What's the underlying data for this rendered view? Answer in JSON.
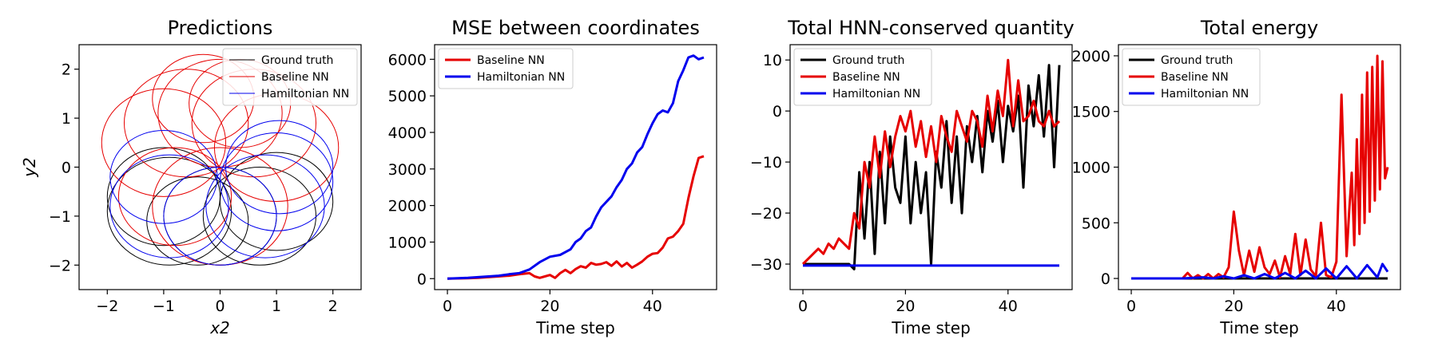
{
  "chart_data": [
    {
      "type": "line",
      "title": "Predictions",
      "xlabel": "x2",
      "ylabel": "y2",
      "xlim": [
        -2.5,
        2.5
      ],
      "ylim": [
        -2.5,
        2.5
      ],
      "xticks": [
        -2,
        -1,
        0,
        1,
        2
      ],
      "yticks": [
        -2,
        -1,
        0,
        1,
        2
      ],
      "xticklabels": [
        "−2",
        "−1",
        "0",
        "1",
        "2"
      ],
      "yticklabels": [
        "−2",
        "−1",
        "0",
        "1",
        "2"
      ],
      "legend": "top-right",
      "series": [
        {
          "name": "Ground truth",
          "color": "#000000",
          "width": 1,
          "loops": [
            {
              "cx": -0.9,
              "cy": -0.9,
              "r": 1.1
            },
            {
              "cx": 0.7,
              "cy": -1.0,
              "r": 1.0
            },
            {
              "cx": -0.4,
              "cy": -1.1,
              "r": 0.9
            },
            {
              "cx": 1.0,
              "cy": -0.7,
              "r": 1.0
            },
            {
              "cx": 0.0,
              "cy": -1.0,
              "r": 1.0
            },
            {
              "cx": -1.0,
              "cy": -0.6,
              "r": 1.0
            }
          ]
        },
        {
          "name": "Baseline NN",
          "color": "#e60000",
          "width": 1,
          "loops": [
            {
              "cx": -0.6,
              "cy": 0.9,
              "r": 1.1
            },
            {
              "cx": 0.6,
              "cy": 0.9,
              "r": 1.1
            },
            {
              "cx": 0.0,
              "cy": 1.1,
              "r": 1.1
            },
            {
              "cx": -1.0,
              "cy": 0.5,
              "r": 1.1
            },
            {
              "cx": 1.0,
              "cy": 0.4,
              "r": 1.1
            },
            {
              "cx": -0.3,
              "cy": 1.4,
              "r": 0.9
            },
            {
              "cx": 0.35,
              "cy": 1.3,
              "r": 0.9
            },
            {
              "cx": 0.0,
              "cy": -0.8,
              "r": 1.2
            },
            {
              "cx": -0.8,
              "cy": -0.6,
              "r": 1.0
            }
          ]
        },
        {
          "name": "Hamiltonian NN",
          "color": "#0000ee",
          "width": 1,
          "loops": [
            {
              "cx": 1.0,
              "cy": -0.3,
              "r": 1.0
            },
            {
              "cx": 0.8,
              "cy": -0.8,
              "r": 1.05
            },
            {
              "cx": -0.9,
              "cy": -0.8,
              "r": 1.05
            },
            {
              "cx": 0.0,
              "cy": -1.0,
              "r": 1.0
            },
            {
              "cx": 1.05,
              "cy": 0.0,
              "r": 0.95
            },
            {
              "cx": -1.0,
              "cy": -0.2,
              "r": 0.95
            }
          ]
        }
      ]
    },
    {
      "type": "line",
      "title": "MSE between coordinates",
      "xlabel": "Time step",
      "ylabel": "",
      "xlim": [
        -2.5,
        52.5
      ],
      "ylim": [
        -300,
        6400
      ],
      "xticks": [
        0,
        20,
        40
      ],
      "yticks": [
        0,
        1000,
        2000,
        3000,
        4000,
        5000,
        6000
      ],
      "xticklabels": [
        "0",
        "20",
        "40"
      ],
      "yticklabels": [
        "0",
        "1000",
        "2000",
        "3000",
        "4000",
        "5000",
        "6000"
      ],
      "legend": "top-left",
      "series": [
        {
          "name": "Baseline NN",
          "color": "#e60000",
          "width": 3,
          "x": [
            0,
            2,
            4,
            6,
            8,
            10,
            12,
            14,
            16,
            17,
            18,
            19,
            20,
            21,
            22,
            23,
            24,
            25,
            26,
            27,
            28,
            29,
            30,
            31,
            32,
            33,
            34,
            35,
            36,
            37,
            38,
            39,
            40,
            41,
            42,
            43,
            44,
            45,
            46,
            47,
            48,
            49,
            50
          ],
          "y": [
            0,
            5,
            10,
            20,
            40,
            60,
            80,
            120,
            150,
            60,
            20,
            60,
            100,
            20,
            150,
            240,
            150,
            260,
            340,
            300,
            430,
            380,
            400,
            450,
            350,
            470,
            330,
            430,
            300,
            380,
            470,
            600,
            680,
            700,
            850,
            1100,
            1150,
            1300,
            1500,
            2200,
            2800,
            3300,
            3350
          ]
        },
        {
          "name": "Hamiltonian NN",
          "color": "#0000ee",
          "width": 3,
          "x": [
            0,
            2,
            4,
            6,
            8,
            10,
            12,
            14,
            16,
            18,
            20,
            22,
            24,
            25,
            26,
            27,
            28,
            29,
            30,
            31,
            32,
            33,
            34,
            35,
            36,
            37,
            38,
            39,
            40,
            41,
            42,
            43,
            44,
            45,
            46,
            47,
            48,
            49,
            50
          ],
          "y": [
            0,
            10,
            20,
            40,
            60,
            80,
            120,
            150,
            250,
            450,
            600,
            650,
            800,
            1000,
            1100,
            1300,
            1400,
            1700,
            1950,
            2100,
            2250,
            2500,
            2700,
            3000,
            3150,
            3450,
            3600,
            3950,
            4250,
            4500,
            4600,
            4550,
            4800,
            5400,
            5700,
            6050,
            6100,
            6000,
            6050
          ]
        }
      ]
    },
    {
      "type": "line",
      "title": "Total HNN-conserved quantity",
      "xlabel": "Time step",
      "ylabel": "",
      "xlim": [
        -2.5,
        52.5
      ],
      "ylim": [
        -35,
        13
      ],
      "xticks": [
        0,
        20,
        40
      ],
      "yticks": [
        -30,
        -20,
        -10,
        0,
        10
      ],
      "xticklabels": [
        "0",
        "20",
        "40"
      ],
      "yticklabels": [
        "−30",
        "−20",
        "−10",
        "0",
        "10"
      ],
      "legend": "top-left",
      "series": [
        {
          "name": "Ground truth",
          "color": "#000000",
          "width": 3,
          "x": [
            0,
            1,
            2,
            3,
            4,
            5,
            6,
            7,
            8,
            9,
            10,
            11,
            12,
            13,
            14,
            15,
            16,
            17,
            18,
            19,
            20,
            21,
            22,
            23,
            24,
            25,
            26,
            27,
            28,
            29,
            30,
            31,
            32,
            33,
            34,
            35,
            36,
            37,
            38,
            39,
            40,
            41,
            42,
            43,
            44,
            45,
            46,
            47,
            48,
            49,
            50
          ],
          "y": [
            -30,
            -30,
            -30,
            -30,
            -30,
            -30,
            -30,
            -30,
            -30,
            -30,
            -31,
            -12,
            -25,
            -10,
            -28,
            -8,
            -22,
            -5,
            -15,
            -18,
            -5,
            -22,
            -10,
            -20,
            -12,
            -30,
            -8,
            -15,
            -2,
            -18,
            -5,
            -20,
            -3,
            -10,
            -1,
            -12,
            0,
            -6,
            2,
            -10,
            1,
            -4,
            3,
            -15,
            5,
            -3,
            7,
            -5,
            9,
            -11,
            9
          ]
        },
        {
          "name": "Baseline NN",
          "color": "#e60000",
          "width": 3,
          "x": [
            0,
            1,
            2,
            3,
            4,
            5,
            6,
            7,
            8,
            9,
            10,
            11,
            12,
            13,
            14,
            15,
            16,
            17,
            18,
            19,
            20,
            21,
            22,
            23,
            24,
            25,
            26,
            27,
            28,
            29,
            30,
            31,
            32,
            33,
            34,
            35,
            36,
            37,
            38,
            39,
            40,
            41,
            42,
            43,
            44,
            45,
            46,
            47,
            48,
            49,
            50
          ],
          "y": [
            -30,
            -29,
            -28,
            -27,
            -28,
            -26,
            -27,
            -25,
            -26,
            -27,
            -20,
            -23,
            -10,
            -15,
            -5,
            -13,
            -4,
            -11,
            -5,
            -1,
            -4,
            0,
            -7,
            -2,
            -9,
            -3,
            -10,
            -1,
            -5,
            -8,
            0,
            -3,
            -6,
            0,
            -2,
            -7,
            3,
            -4,
            4,
            -1,
            10,
            -3,
            6,
            -2,
            -1,
            2,
            -2,
            -3,
            0,
            -3,
            -2
          ]
        },
        {
          "name": "Hamiltonian NN",
          "color": "#0000ee",
          "width": 3,
          "x": [
            0,
            10,
            20,
            30,
            40,
            50
          ],
          "y": [
            -30.3,
            -30.3,
            -30.3,
            -30.3,
            -30.3,
            -30.3
          ]
        }
      ]
    },
    {
      "type": "line",
      "title": "Total energy",
      "xlabel": "Time step",
      "ylabel": "",
      "xlim": [
        -2.5,
        52.5
      ],
      "ylim": [
        -100,
        2100
      ],
      "xticks": [
        0,
        20,
        40
      ],
      "yticks": [
        0,
        500,
        1000,
        1500,
        2000
      ],
      "xticklabels": [
        "0",
        "20",
        "40"
      ],
      "yticklabels": [
        "0",
        "500",
        "1000",
        "1500",
        "2000"
      ],
      "legend": "top-left",
      "series": [
        {
          "name": "Ground truth",
          "color": "#000000",
          "width": 3,
          "x": [
            0,
            50
          ],
          "y": [
            0,
            0
          ]
        },
        {
          "name": "Baseline NN",
          "color": "#e60000",
          "width": 3,
          "x": [
            0,
            5,
            10,
            11,
            12,
            13,
            14,
            15,
            16,
            17,
            18,
            19,
            20,
            21,
            22,
            23,
            24,
            25,
            26,
            27,
            28,
            29,
            30,
            31,
            32,
            33,
            34,
            35,
            36,
            37,
            38,
            39,
            40,
            41,
            42,
            42.5,
            43,
            43.5,
            44,
            44.5,
            45,
            45.5,
            46,
            46.5,
            47,
            47.5,
            48,
            48.5,
            49,
            49.5,
            50
          ],
          "y": [
            0,
            0,
            0,
            50,
            0,
            30,
            0,
            40,
            0,
            40,
            10,
            100,
            600,
            250,
            30,
            250,
            60,
            280,
            100,
            40,
            160,
            10,
            200,
            40,
            400,
            30,
            350,
            80,
            20,
            500,
            30,
            10,
            150,
            1650,
            200,
            600,
            950,
            300,
            1250,
            400,
            1650,
            500,
            1850,
            600,
            1900,
            700,
            2000,
            800,
            1950,
            900,
            1000
          ]
        },
        {
          "name": "Hamiltonian NN",
          "color": "#0000ee",
          "width": 3,
          "x": [
            0,
            10,
            14,
            16,
            18,
            20,
            22,
            24,
            26,
            28,
            30,
            32,
            34,
            36,
            38,
            40,
            42,
            44,
            46,
            48,
            49,
            50
          ],
          "y": [
            0,
            0,
            10,
            0,
            20,
            0,
            30,
            0,
            40,
            0,
            50,
            0,
            70,
            0,
            90,
            0,
            110,
            0,
            120,
            10,
            130,
            60
          ]
        }
      ]
    }
  ]
}
